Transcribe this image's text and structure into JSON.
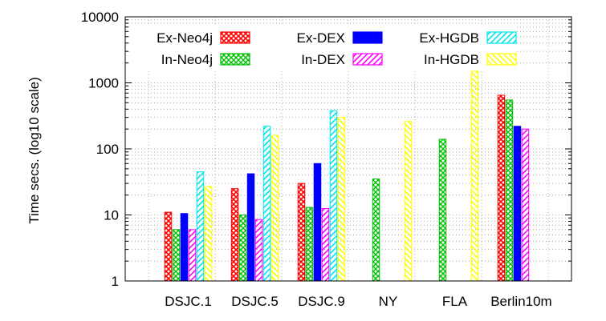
{
  "chart_data": {
    "type": "bar",
    "title": "",
    "xlabel": "",
    "ylabel": "Time secs. (log10 scale)",
    "yscale": "log10",
    "ylim": [
      1,
      10000
    ],
    "yticks": [
      "1",
      "10",
      "100",
      "1000",
      "10000"
    ],
    "grid": "dotted",
    "legend_position": "top-right",
    "categories": [
      "DSJC.1",
      "DSJC.5",
      "DSJC.9",
      "NY",
      "FLA",
      "Berlin10m"
    ],
    "series": [
      {
        "name": "Ex-Neo4j",
        "color": "#ff0000",
        "pattern": "crosshatch",
        "values": [
          11,
          25,
          30,
          null,
          null,
          650
        ]
      },
      {
        "name": "In-Neo4j",
        "color": "#00c000",
        "pattern": "crosshatch",
        "values": [
          6,
          10,
          13,
          35,
          140,
          550
        ]
      },
      {
        "name": "Ex-DEX",
        "color": "#0000ff",
        "pattern": "solid",
        "values": [
          10.5,
          42,
          60,
          null,
          null,
          220
        ]
      },
      {
        "name": "In-DEX",
        "color": "#ff00ff",
        "pattern": "diagonal",
        "values": [
          6,
          8.5,
          12.5,
          null,
          null,
          200
        ]
      },
      {
        "name": "Ex-HGDB",
        "color": "#00e5ee",
        "pattern": "diagonal",
        "values": [
          45,
          220,
          380,
          null,
          null,
          null
        ]
      },
      {
        "name": "In-HGDB",
        "color": "#ffff00",
        "pattern": "diagonal",
        "values": [
          27,
          160,
          300,
          260,
          1500,
          null
        ]
      }
    ]
  }
}
